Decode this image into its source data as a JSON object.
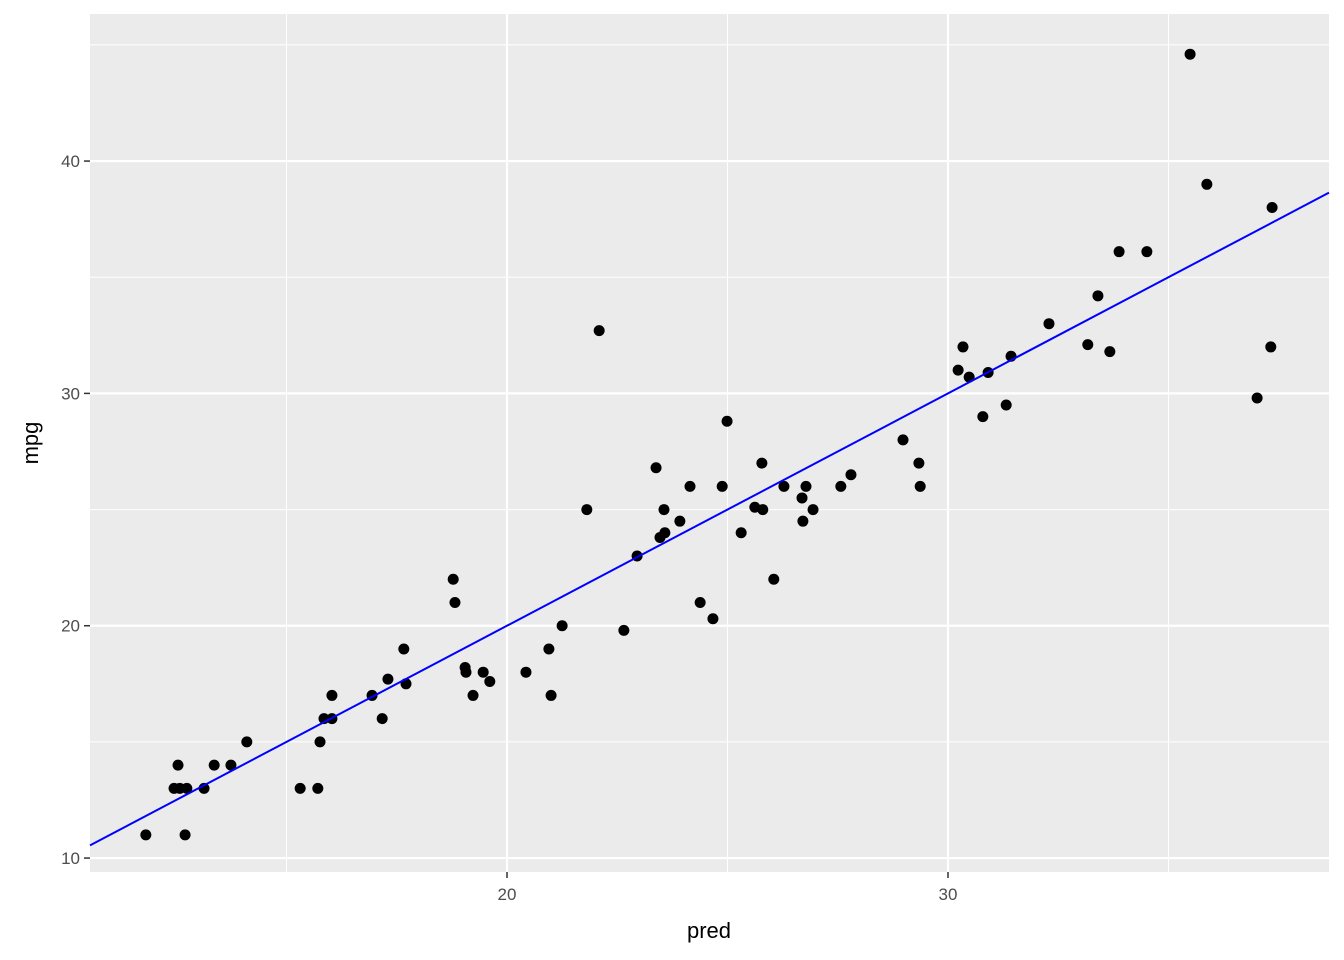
{
  "chart_data": {
    "type": "scatter",
    "x_label": "pred",
    "y_label": "mpg",
    "xlim": [
      10.544,
      38.64
    ],
    "ylim": [
      9.4,
      46.33
    ],
    "xticks": [
      20,
      30
    ],
    "yticks": [
      10,
      20,
      30,
      40
    ],
    "minor_xticks": [
      15,
      25,
      35
    ],
    "minor_yticks": [
      15,
      25,
      35,
      45
    ],
    "grid": true,
    "color": "#000000",
    "x": [
      11.81,
      12.54,
      12.45,
      12.58,
      12.74,
      12.7,
      13.13,
      13.36,
      13.74,
      14.1,
      15.31,
      15.71,
      15.76,
      15.85,
      16.03,
      16.03,
      16.94,
      17.17,
      17.3,
      17.66,
      17.71,
      18.78,
      18.82,
      19.05,
      19.07,
      19.23,
      19.46,
      19.61,
      20.43,
      20.95,
      21.0,
      21.25,
      21.81,
      22.09,
      22.65,
      22.95,
      23.38,
      23.47,
      23.56,
      23.58,
      23.92,
      24.15,
      24.38,
      24.67,
      24.88,
      24.99,
      25.31,
      25.62,
      25.78,
      25.8,
      26.05,
      26.28,
      26.69,
      26.71,
      26.78,
      26.94,
      27.57,
      27.8,
      28.98,
      29.34,
      29.37,
      30.23,
      30.34,
      30.48,
      30.79,
      30.91,
      31.32,
      31.43,
      32.29,
      33.17,
      33.4,
      33.67,
      33.88,
      34.51,
      35.49,
      35.87,
      37.01,
      37.32,
      37.35
    ],
    "y": [
      11.0,
      14.0,
      13.0,
      13.0,
      13.0,
      11.0,
      13.0,
      14.0,
      14.0,
      15.0,
      13.0,
      13.0,
      15.0,
      16.0,
      16.0,
      17.0,
      17.0,
      16.0,
      17.7,
      19.0,
      17.5,
      22.0,
      21.0,
      18.2,
      18.0,
      17.0,
      18.0,
      17.6,
      18.0,
      19.0,
      17.0,
      20.0,
      25.0,
      32.7,
      19.8,
      23.0,
      26.8,
      23.8,
      25.0,
      24.0,
      24.5,
      26.0,
      21.0,
      20.3,
      26.0,
      28.8,
      24.0,
      25.1,
      27.0,
      25.0,
      22.0,
      26.0,
      25.5,
      24.5,
      26.0,
      25.0,
      26.0,
      26.5,
      28.0,
      27.0,
      26.0,
      31.0,
      32.0,
      30.7,
      29.0,
      30.9,
      29.5,
      31.6,
      33.0,
      32.1,
      34.2,
      31.8,
      36.1,
      36.1,
      44.6,
      39.0,
      29.8,
      32.0,
      38.0
    ],
    "reference_line": {
      "slope": 1,
      "intercept": 0,
      "color": "#0000ff"
    }
  }
}
